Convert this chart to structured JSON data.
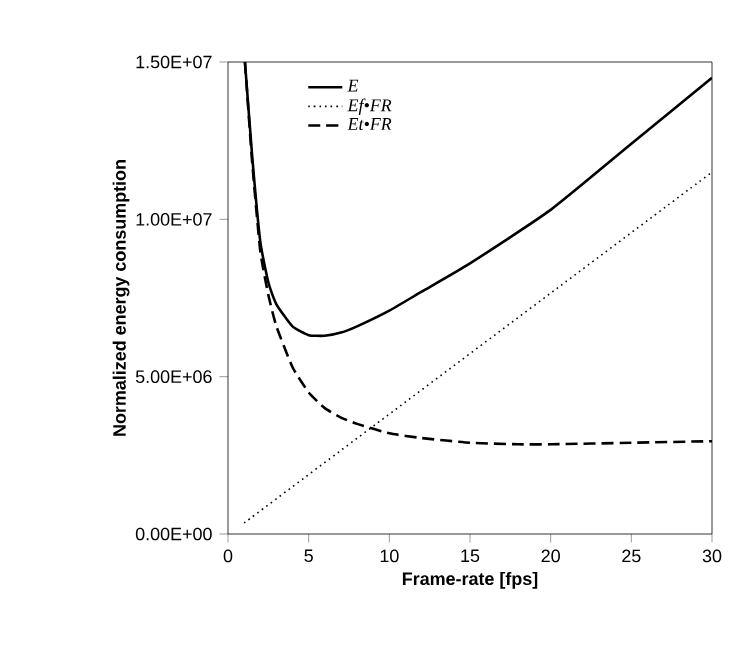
{
  "chart_data": {
    "type": "line",
    "xlabel": "Frame-rate [fps]",
    "ylabel": "Normalized energy consumption",
    "xlim": [
      0,
      30
    ],
    "xticks": [
      0,
      5,
      10,
      15,
      20,
      25,
      30
    ],
    "ylim": [
      0,
      15000000
    ],
    "yticks": [
      {
        "value": 0,
        "label": "0.00E+00"
      },
      {
        "value": 5000000,
        "label": "5.00E+06"
      },
      {
        "value": 10000000,
        "label": "1.00E+07"
      },
      {
        "value": 15000000,
        "label": "1.50E+07"
      }
    ],
    "legend": "top left",
    "grid": false,
    "marker": "none",
    "series": [
      {
        "name": "E",
        "color": "#000000",
        "line_style": "solid",
        "x": [
          1.05,
          1.5,
          2,
          2.5,
          3,
          4,
          5,
          6,
          7,
          8,
          10,
          12,
          15,
          20,
          25,
          30
        ],
        "values": [
          15000000,
          12000000,
          9300000,
          8000000,
          7300000,
          6600000,
          6320000,
          6300000,
          6400000,
          6600000,
          7100000,
          7700000,
          8600000,
          10300000,
          12400000,
          14500000
        ]
      },
      {
        "name": "Ef•FR",
        "color": "#000000",
        "line_style": "dotted",
        "x": [
          1,
          30
        ],
        "values": [
          350000,
          11500000
        ]
      },
      {
        "name": "Et•FR",
        "color": "#000000",
        "line_style": "dashed",
        "x": [
          1.05,
          1.5,
          2,
          2.5,
          3,
          4,
          5,
          6,
          7,
          8,
          10,
          12,
          15,
          18,
          20,
          25,
          30
        ],
        "values": [
          15000000,
          11800000,
          9000000,
          7600000,
          6600000,
          5300000,
          4500000,
          4000000,
          3700000,
          3500000,
          3200000,
          3050000,
          2900000,
          2850000,
          2850000,
          2900000,
          2950000
        ]
      }
    ]
  }
}
